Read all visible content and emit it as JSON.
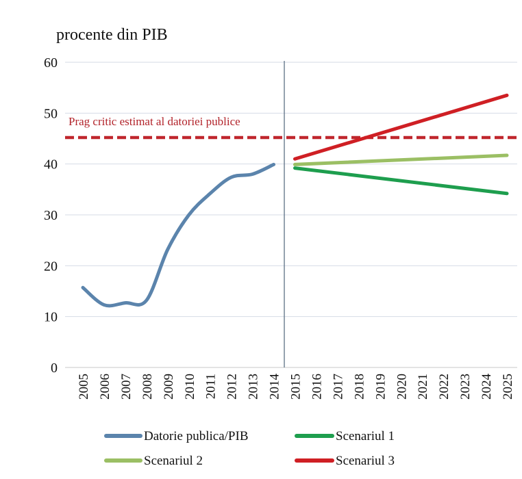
{
  "chart_data": {
    "type": "line",
    "ylabel": "procente din PIB",
    "ylim": [
      0,
      60
    ],
    "yticks": [
      "0",
      "10",
      "20",
      "30",
      "40",
      "50",
      "60"
    ],
    "grid": true,
    "categories": [
      "2005",
      "2006",
      "2007",
      "2008",
      "2009",
      "2010",
      "2011",
      "2012",
      "2013",
      "2014",
      "2015",
      "2016",
      "2017",
      "2018",
      "2019",
      "2020",
      "2021",
      "2022",
      "2023",
      "2024",
      "2025"
    ],
    "divider_after": "2014",
    "threshold": {
      "value": 45.2,
      "label": "Prag critic estimat al datoriei publice",
      "color": "#c0272d"
    },
    "series": [
      {
        "name": "Datorie publica/PIB",
        "color": "#5b84ac",
        "x": [
          "2005",
          "2006",
          "2007",
          "2008",
          "2009",
          "2010",
          "2011",
          "2012",
          "2013",
          "2014"
        ],
        "values": [
          15.7,
          12.3,
          12.7,
          13.2,
          23.2,
          30.0,
          34.2,
          37.4,
          38.0,
          39.9
        ]
      },
      {
        "name": "Scenariul 1",
        "color": "#1e9e4e",
        "x": [
          "2015",
          "2025"
        ],
        "values": [
          39.2,
          34.2
        ]
      },
      {
        "name": "Scenariul 2",
        "color": "#9bbf64",
        "x": [
          "2015",
          "2025"
        ],
        "values": [
          39.9,
          41.7
        ]
      },
      {
        "name": "Scenariul 3",
        "color": "#cf1f24",
        "x": [
          "2015",
          "2025"
        ],
        "values": [
          41.0,
          53.5
        ]
      }
    ],
    "legend": [
      {
        "label": "Datorie publica/PIB",
        "color": "#5b84ac"
      },
      {
        "label": "Scenariul 1",
        "color": "#1e9e4e"
      },
      {
        "label": "Scenariul 2",
        "color": "#9bbf64"
      },
      {
        "label": "Scenariul 3",
        "color": "#cf1f24"
      }
    ]
  }
}
